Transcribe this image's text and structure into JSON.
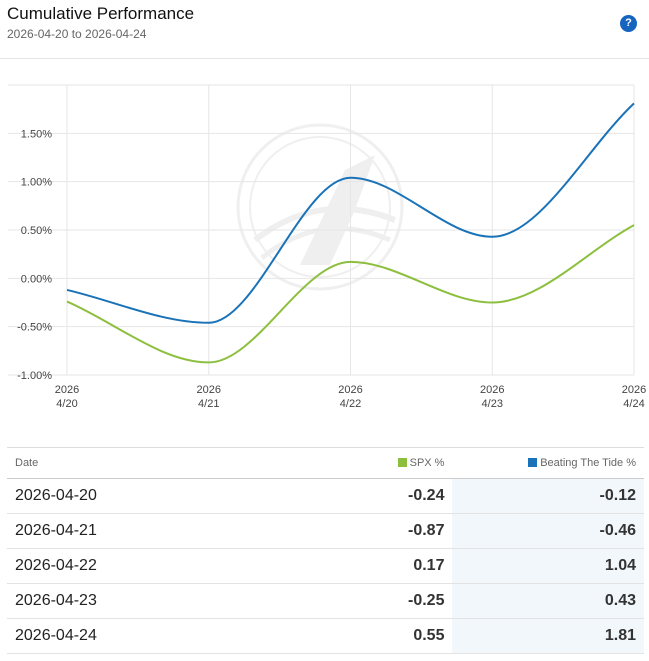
{
  "header": {
    "title": "Cumulative Performance",
    "subtitle": "2026-04-20 to 2026-04-24",
    "help_label": "?"
  },
  "colors": {
    "spx": "#8dbf3f",
    "btt": "#1a73b8",
    "grid": "#e6e6e6"
  },
  "chart_data": {
    "type": "line",
    "x": [
      "2026-04-20",
      "2026-04-21",
      "2026-04-22",
      "2026-04-23",
      "2026-04-24"
    ],
    "x_tick_labels": [
      {
        "top": "2026",
        "bottom": "4/20"
      },
      {
        "top": "2026",
        "bottom": "4/21"
      },
      {
        "top": "2026",
        "bottom": "4/22"
      },
      {
        "top": "2026",
        "bottom": "4/23"
      },
      {
        "top": "2026",
        "bottom": "4/24"
      }
    ],
    "y_ticks": [
      -1.0,
      -0.5,
      0.0,
      0.5,
      1.0,
      1.5
    ],
    "y_tick_labels": [
      "-1.00%",
      "-0.50%",
      "0.00%",
      "0.50%",
      "1.00%",
      "1.50%"
    ],
    "ylim": [
      -1.0,
      2.0
    ],
    "grid": true,
    "series": [
      {
        "name": "SPX %",
        "color": "#8dbf3f",
        "values": [
          -0.24,
          -0.87,
          0.17,
          -0.25,
          0.55
        ]
      },
      {
        "name": "Beating The Tide %",
        "color": "#1a73b8",
        "values": [
          -0.12,
          -0.46,
          1.04,
          0.43,
          1.81
        ]
      }
    ]
  },
  "table": {
    "headers": {
      "date": "Date",
      "spx": "SPX %",
      "btt": "Beating The Tide %"
    },
    "rows": [
      {
        "date": "2026-04-20",
        "spx": "-0.24",
        "btt": "-0.12"
      },
      {
        "date": "2026-04-21",
        "spx": "-0.87",
        "btt": "-0.46"
      },
      {
        "date": "2026-04-22",
        "spx": "0.17",
        "btt": "1.04"
      },
      {
        "date": "2026-04-23",
        "spx": "-0.25",
        "btt": "0.43"
      },
      {
        "date": "2026-04-24",
        "spx": "0.55",
        "btt": "1.81"
      }
    ]
  }
}
